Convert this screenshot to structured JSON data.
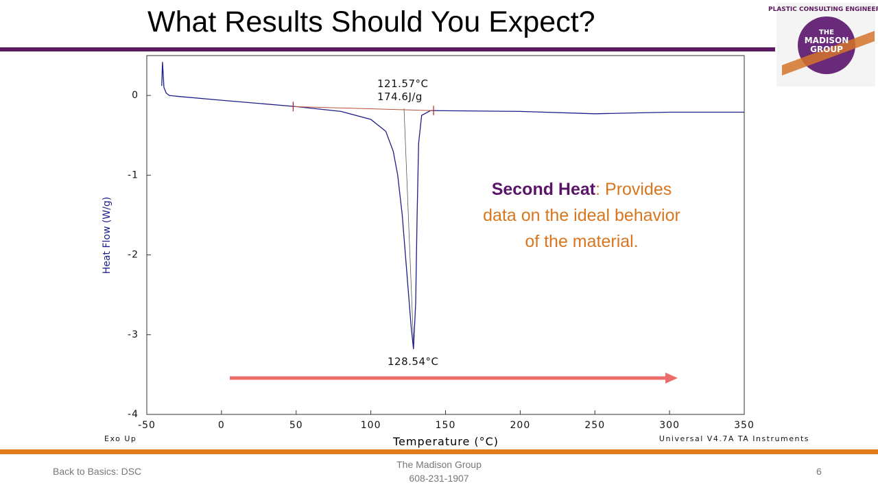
{
  "slide": {
    "title": "What Results Should You Expect?",
    "callout": {
      "heading": "Second Heat",
      "lines": [
        ": Provides",
        "data on the ideal behavior",
        "of the material."
      ]
    },
    "footer": {
      "left": "Back to Basics: DSC",
      "center": [
        "The Madison Group",
        "608-231-1907"
      ],
      "page": "6"
    },
    "logo": {
      "arc": "PLASTIC CONSULTING ENGINEERS",
      "name": [
        "THE",
        "MADISON",
        "GROUP"
      ]
    }
  },
  "chart_data": {
    "type": "line",
    "x_label": "Temperature (°C)",
    "y_label": "Heat Flow (W/g)",
    "xlim": [
      -50,
      350
    ],
    "ylim": [
      -4,
      0.5
    ],
    "xticks": [
      -50,
      0,
      50,
      100,
      150,
      200,
      250,
      300,
      350
    ],
    "yticks": [
      0,
      -1,
      -2,
      -3,
      -4
    ],
    "series": [
      {
        "color": "#1c1c8a",
        "x": [
          -40,
          -39.5,
          -38.5,
          -37,
          -35,
          -30,
          0,
          50,
          80,
          100,
          110,
          115,
          118,
          121,
          124,
          127,
          128.54,
          130,
          131,
          132,
          134,
          140,
          200,
          250,
          300,
          350
        ],
        "values": [
          0.12,
          0.42,
          0.1,
          0.03,
          0.0,
          -0.01,
          -0.06,
          -0.14,
          -0.2,
          -0.3,
          -0.45,
          -0.7,
          -1.0,
          -1.5,
          -2.2,
          -2.9,
          -3.18,
          -2.6,
          -1.5,
          -0.6,
          -0.25,
          -0.19,
          -0.2,
          -0.23,
          -0.21,
          -0.21
        ]
      }
    ],
    "baseline": {
      "color": "#b5503a",
      "x": [
        48,
        142
      ],
      "values": [
        -0.14,
        -0.19
      ]
    },
    "annotations": [
      "121.57°C",
      "174.6J/g",
      "128.54°C"
    ],
    "notes": [
      "Exo Up",
      "Universal V4.7A TA Instruments"
    ]
  }
}
